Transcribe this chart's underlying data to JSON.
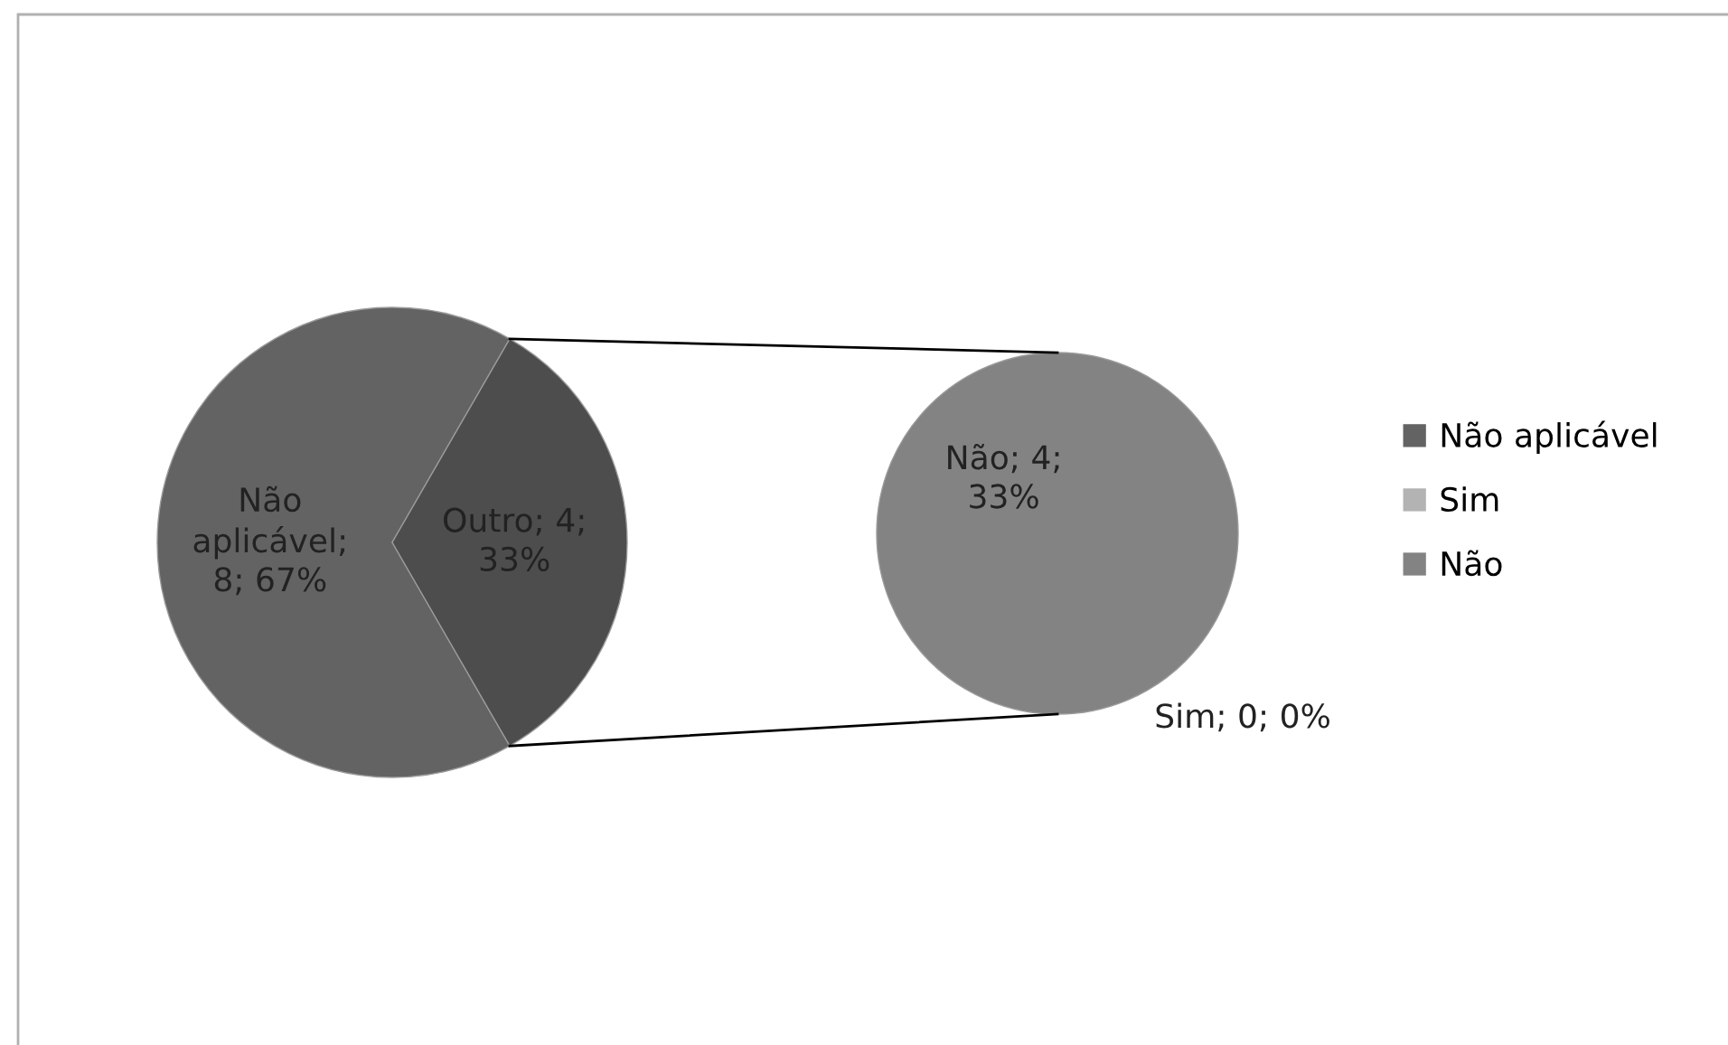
{
  "chart_data": [
    {
      "type": "pie",
      "categories": [
        "Não aplicável",
        null
      ],
      "values": [
        8,
        4
      ],
      "colors": [
        "#636363",
        "#4d4d4d"
      ],
      "value_labels": [
        "Não aplicável; 8; 67%",
        "Outro; 4; 33%"
      ]
    },
    {
      "type": "pie",
      "categories": [
        "Sim",
        "Não"
      ],
      "values": [
        0,
        4
      ],
      "colors": [
        "#b3b3b3",
        "#838383"
      ],
      "value_labels": [
        "Sim; 0; 0%",
        "Não; 4; 33%"
      ],
      "legend": "right"
    }
  ]
}
